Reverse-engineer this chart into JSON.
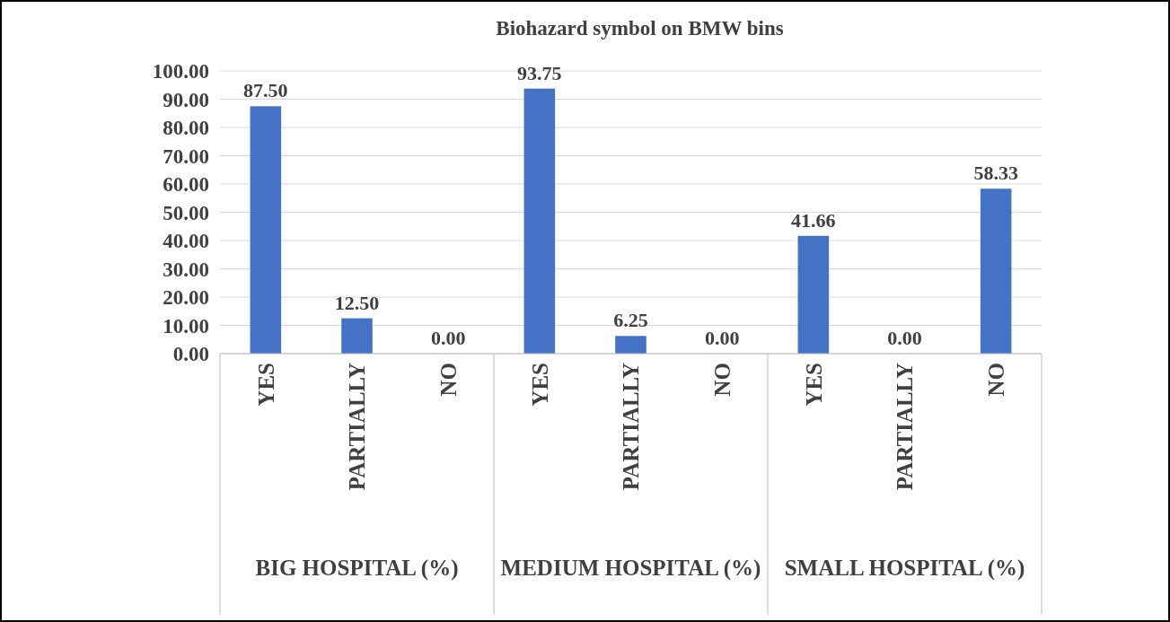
{
  "chart_data": {
    "type": "bar",
    "title": "Biohazard symbol on BMW bins",
    "categories": [
      "YES",
      "PARTIALLY",
      "NO",
      "YES",
      "PARTIALLY",
      "NO",
      "YES",
      "PARTIALLY",
      "NO"
    ],
    "values": [
      87.5,
      12.5,
      0,
      93.75,
      6.25,
      0,
      41.66,
      0,
      58.33
    ],
    "value_labels": [
      "87.50",
      "12.50",
      "0.00",
      "93.75",
      "6.25",
      "0.00",
      "41.66",
      "0.00",
      "58.33"
    ],
    "color": "#4472c4",
    "ylim": [
      0,
      100
    ],
    "yticks": [
      {
        "value": 0,
        "label": "0.00"
      },
      {
        "value": 10,
        "label": "10.00"
      },
      {
        "value": 20,
        "label": "20.00"
      },
      {
        "value": 30,
        "label": "30.00"
      },
      {
        "value": 40,
        "label": "40.00"
      },
      {
        "value": 50,
        "label": "50.00"
      },
      {
        "value": 60,
        "label": "60.00"
      },
      {
        "value": 70,
        "label": "70.00"
      },
      {
        "value": 80,
        "label": "80.00"
      },
      {
        "value": 90,
        "label": "90.00"
      },
      {
        "value": 100,
        "label": "100.00"
      }
    ],
    "grid": "y",
    "annotations": [
      "BIG HOSPITAL (%)",
      "MEDIUM HOSPITAL (%)",
      "SMALL HOSPITAL (%)"
    ]
  }
}
